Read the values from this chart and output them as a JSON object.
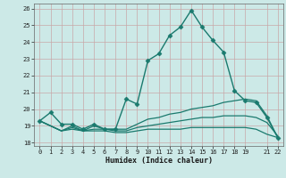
{
  "xlabel": "Humidex (Indice chaleur)",
  "ylabel": "",
  "bg_color": "#cce9e7",
  "line_color": "#1a7a6e",
  "grid_color": "#c8a8a8",
  "xlim": [
    -0.5,
    22.5
  ],
  "ylim": [
    17.8,
    26.3
  ],
  "xticks": [
    0,
    1,
    2,
    3,
    4,
    5,
    6,
    7,
    8,
    9,
    10,
    11,
    12,
    13,
    14,
    15,
    16,
    17,
    18,
    19,
    21,
    22
  ],
  "yticks": [
    18,
    19,
    20,
    21,
    22,
    23,
    24,
    25,
    26
  ],
  "series": [
    {
      "x": [
        0,
        1,
        2,
        3,
        4,
        5,
        6,
        7,
        8,
        9,
        10,
        11,
        12,
        13,
        14,
        15,
        16,
        17,
        18,
        19,
        20,
        21,
        22
      ],
      "y": [
        19.3,
        19.8,
        19.1,
        19.1,
        18.8,
        19.1,
        18.8,
        18.8,
        20.6,
        20.3,
        22.9,
        23.3,
        24.4,
        24.9,
        25.9,
        24.9,
        24.1,
        23.4,
        21.1,
        20.5,
        20.4,
        19.5,
        18.3
      ],
      "marker": "D",
      "markersize": 2.5,
      "linewidth": 1.0
    },
    {
      "x": [
        0,
        2,
        3,
        4,
        5,
        6,
        7,
        8,
        9,
        10,
        11,
        12,
        13,
        14,
        15,
        16,
        17,
        18,
        19,
        20,
        21,
        22
      ],
      "y": [
        19.3,
        18.7,
        19.0,
        18.7,
        19.0,
        18.8,
        18.8,
        18.8,
        19.1,
        19.4,
        19.5,
        19.7,
        19.8,
        20.0,
        20.1,
        20.2,
        20.4,
        20.5,
        20.6,
        20.5,
        19.6,
        18.3
      ],
      "marker": null,
      "markersize": 0,
      "linewidth": 0.9
    },
    {
      "x": [
        0,
        2,
        3,
        4,
        5,
        6,
        7,
        8,
        9,
        10,
        11,
        12,
        13,
        14,
        15,
        16,
        17,
        18,
        19,
        20,
        21,
        22
      ],
      "y": [
        19.3,
        18.7,
        18.9,
        18.7,
        18.8,
        18.8,
        18.7,
        18.7,
        18.9,
        19.0,
        19.1,
        19.2,
        19.3,
        19.4,
        19.5,
        19.5,
        19.6,
        19.6,
        19.6,
        19.5,
        19.2,
        18.4
      ],
      "marker": null,
      "markersize": 0,
      "linewidth": 0.9
    },
    {
      "x": [
        0,
        2,
        3,
        4,
        5,
        6,
        7,
        8,
        9,
        10,
        11,
        12,
        13,
        14,
        15,
        16,
        17,
        18,
        19,
        20,
        21,
        22
      ],
      "y": [
        19.3,
        18.7,
        18.8,
        18.7,
        18.7,
        18.7,
        18.6,
        18.6,
        18.7,
        18.8,
        18.8,
        18.8,
        18.8,
        18.9,
        18.9,
        18.9,
        18.9,
        18.9,
        18.9,
        18.8,
        18.5,
        18.3
      ],
      "marker": null,
      "markersize": 0,
      "linewidth": 0.9
    }
  ]
}
